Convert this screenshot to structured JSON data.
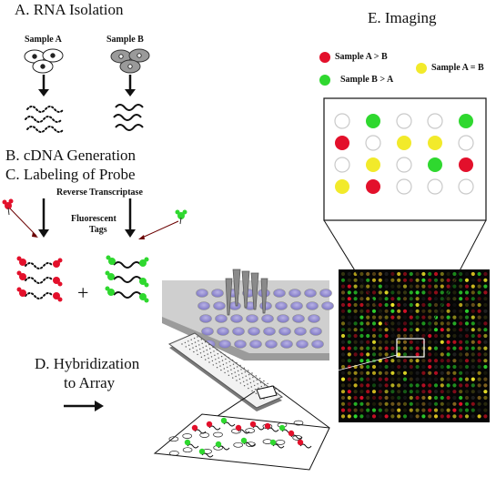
{
  "labels": {
    "rna_isolation": "A.  RNA Isolation",
    "sample_a": "Sample A",
    "sample_b": "Sample B",
    "cdna_generation": "B.  cDNA Generation",
    "labeling": "C.  Labeling of Probe",
    "reverse_transcriptase": "Reverse Transcriptase",
    "fluorescent": "Fluorescent",
    "tags": "Tags",
    "plus": "+",
    "hybridization_line1": "D.  Hybridization",
    "hybridization_line2": "to Array",
    "imaging": "E.  Imaging"
  },
  "legend": [
    {
      "label": "Sample A > B",
      "color": "#e3102b"
    },
    {
      "label": "Sample B > A",
      "color": "#2fd82f"
    },
    {
      "label": "Sample A = B",
      "color": "#f2ea2a"
    }
  ],
  "colors": {
    "red": "#e3102b",
    "green": "#2fd82f",
    "yellow": "#f2ea2a",
    "empty": "#ffffff"
  },
  "spot_grid": [
    [
      "empty",
      "green",
      "empty",
      "empty",
      "green"
    ],
    [
      "red",
      "empty",
      "yellow",
      "yellow",
      "empty"
    ],
    [
      "empty",
      "yellow",
      "empty",
      "green",
      "red"
    ],
    [
      "yellow",
      "red",
      "empty",
      "empty",
      "empty"
    ]
  ]
}
